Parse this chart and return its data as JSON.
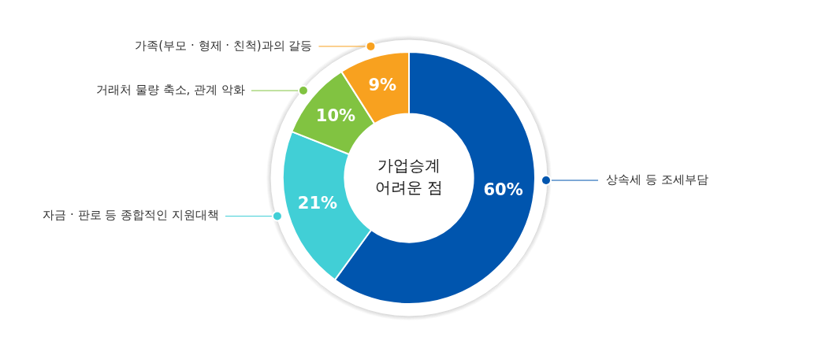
{
  "chart_data": {
    "type": "donut",
    "title": "가업승계 어려운 점",
    "categories": [
      "상속세 등 조세부담",
      "자금 · 판로 등 종합적인 지원대책",
      "거래처 물량 축소, 관계 악화",
      "가족(부모 · 형제 · 친척)과의 갈등"
    ],
    "values": [
      60,
      21,
      10,
      9
    ],
    "colors": [
      "#0055ae",
      "#41cfd6",
      "#81c341",
      "#f8a11f"
    ],
    "value_labels": [
      "60%",
      "21%",
      "10%",
      "9%"
    ]
  }
}
